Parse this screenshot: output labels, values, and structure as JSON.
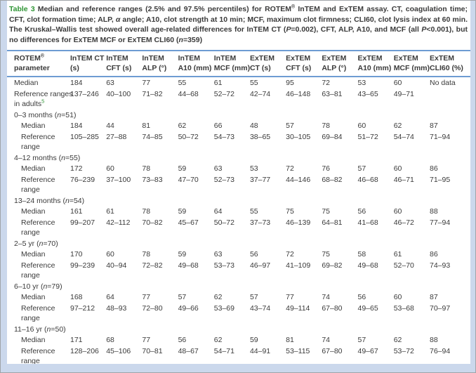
{
  "caption": {
    "label": "Table 3",
    "text": "Median and reference ranges (2.5% and 97.5% percentiles) for ROTEM® InTEM and ExTEM assay. CT, coagulation time; CFT, clot formation time; ALP, α angle; A10, clot strength at 10 min; MCF, maximum clot firmness; CLI60, clot lysis index at 60 min. The Kruskal–Wallis test showed overall age-related differences for InTEM CT (P=0.002), CFT, ALP, A10, and MCF (all P<0.001), but no differences for ExTEM MCF or ExTEM CLI60 (n=359)"
  },
  "table": {
    "columns": [
      {
        "lines": [
          "ROTEM®",
          "parameter"
        ]
      },
      {
        "lines": [
          "InTEM CT",
          "(s)"
        ]
      },
      {
        "lines": [
          "InTEM",
          "CFT (s)"
        ]
      },
      {
        "lines": [
          "InTEM",
          "ALP (°)"
        ]
      },
      {
        "lines": [
          "InTEM",
          "A10 (mm)"
        ]
      },
      {
        "lines": [
          "InTEM",
          "MCF (mm)"
        ]
      },
      {
        "lines": [
          "ExTEM",
          "CT (s)"
        ]
      },
      {
        "lines": [
          "ExTEM",
          "CFT (s)"
        ]
      },
      {
        "lines": [
          "ExTEM",
          "ALP (°)"
        ]
      },
      {
        "lines": [
          "ExTEM",
          "A10 (mm)"
        ]
      },
      {
        "lines": [
          "ExTEM",
          "MCF (mm)"
        ]
      },
      {
        "lines": [
          "ExTEM",
          "CLI60 (%)"
        ]
      }
    ],
    "rows": [
      {
        "kind": "data",
        "indent": 0,
        "label_lines": [
          "Median"
        ],
        "values": [
          "184",
          "63",
          "77",
          "55",
          "61",
          "55",
          "95",
          "72",
          "53",
          "60",
          "No data"
        ]
      },
      {
        "kind": "data",
        "indent": 0,
        "label_lines": [
          "Reference ranges",
          "in adults"
        ],
        "sup": "5",
        "values": [
          "137–246",
          "40–100",
          "71–82",
          "44–68",
          "52–72",
          "42–74",
          "46–148",
          "63–81",
          "43–65",
          "49–71",
          ""
        ]
      },
      {
        "kind": "section",
        "label": "0–3 months (n=51)"
      },
      {
        "kind": "data",
        "indent": 1,
        "label_lines": [
          "Median"
        ],
        "values": [
          "184",
          "44",
          "81",
          "62",
          "66",
          "48",
          "57",
          "78",
          "60",
          "62",
          "87"
        ]
      },
      {
        "kind": "data",
        "indent": 1,
        "label_lines": [
          "Reference",
          "range"
        ],
        "values": [
          "105–285",
          "27–88",
          "74–85",
          "50–72",
          "54–73",
          "38–65",
          "30–105",
          "69–84",
          "51–72",
          "54–74",
          "71–94"
        ]
      },
      {
        "kind": "section",
        "label": "4–12 months (n=55)"
      },
      {
        "kind": "data",
        "indent": 1,
        "label_lines": [
          "Median"
        ],
        "values": [
          "172",
          "60",
          "78",
          "59",
          "63",
          "53",
          "72",
          "76",
          "57",
          "60",
          "86"
        ]
      },
      {
        "kind": "data",
        "indent": 1,
        "label_lines": [
          "Reference",
          "range"
        ],
        "values": [
          "76–239",
          "37–100",
          "73–83",
          "47–70",
          "52–73",
          "37–77",
          "44–146",
          "68–82",
          "46–68",
          "46–71",
          "71–95"
        ]
      },
      {
        "kind": "section",
        "label": "13–24 months (n=54)"
      },
      {
        "kind": "data",
        "indent": 1,
        "label_lines": [
          "Median"
        ],
        "values": [
          "161",
          "61",
          "78",
          "59",
          "64",
          "55",
          "75",
          "75",
          "56",
          "60",
          "88"
        ]
      },
      {
        "kind": "data",
        "indent": 1,
        "label_lines": [
          "Reference",
          "range"
        ],
        "values": [
          "99–207",
          "42–112",
          "70–82",
          "45–67",
          "50–72",
          "37–73",
          "46–139",
          "64–81",
          "41–68",
          "46–72",
          "77–94"
        ]
      },
      {
        "kind": "section",
        "label": "2–5 yr (n=70)"
      },
      {
        "kind": "data",
        "indent": 1,
        "label_lines": [
          "Median"
        ],
        "values": [
          "170",
          "60",
          "78",
          "59",
          "63",
          "56",
          "72",
          "75",
          "58",
          "61",
          "86"
        ]
      },
      {
        "kind": "data",
        "indent": 1,
        "label_lines": [
          "Reference",
          "range"
        ],
        "values": [
          "99–239",
          "40–94",
          "72–82",
          "49–68",
          "53–73",
          "46–97",
          "41–109",
          "69–82",
          "49–68",
          "52–70",
          "74–93"
        ]
      },
      {
        "kind": "section",
        "label": "6–10 yr (n=79)"
      },
      {
        "kind": "data",
        "indent": 1,
        "label_lines": [
          "Median"
        ],
        "values": [
          "168",
          "64",
          "77",
          "57",
          "62",
          "57",
          "77",
          "74",
          "56",
          "60",
          "87"
        ]
      },
      {
        "kind": "data",
        "indent": 1,
        "label_lines": [
          "Reference",
          "range"
        ],
        "values": [
          "97–212",
          "48–93",
          "72–80",
          "49–66",
          "53–69",
          "43–74",
          "49–114",
          "67–80",
          "49–65",
          "53–68",
          "70–97"
        ]
      },
      {
        "kind": "section",
        "label": "11–16 yr (n=50)"
      },
      {
        "kind": "data",
        "indent": 1,
        "label_lines": [
          "Median"
        ],
        "values": [
          "171",
          "68",
          "77",
          "56",
          "62",
          "59",
          "81",
          "74",
          "57",
          "62",
          "88"
        ]
      },
      {
        "kind": "data",
        "indent": 1,
        "label_lines": [
          "Reference",
          "range"
        ],
        "values": [
          "128–206",
          "45–106",
          "70–81",
          "48–67",
          "54–71",
          "44–91",
          "53–115",
          "67–80",
          "49–67",
          "53–72",
          "76–94"
        ]
      }
    ]
  },
  "colors": {
    "accent_green": "#2f9535",
    "rule_blue": "#6e9cd3",
    "page_strip_blue": "#cbd8ec",
    "text": "#3a3a3a"
  }
}
